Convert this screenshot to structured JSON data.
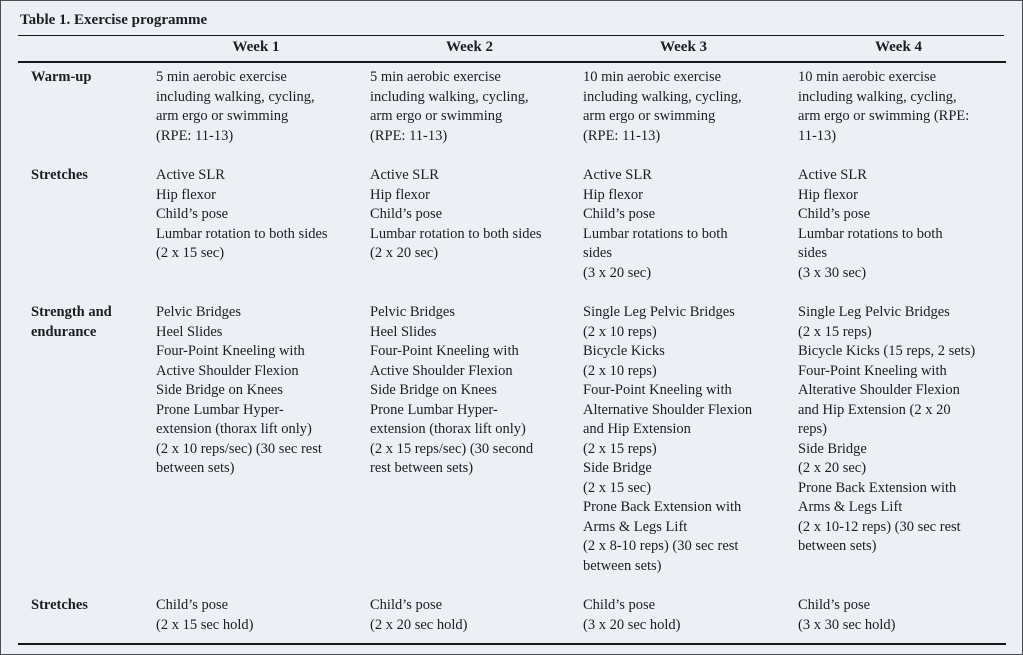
{
  "colors": {
    "bg": "#edeff5",
    "ink": "#1d1d20",
    "rule": "#17171a"
  },
  "caption": "Table 1. Exercise programme",
  "table": {
    "header": [
      "",
      "Week 1",
      "Week 2",
      "Week 3",
      "Week 4"
    ],
    "rows": [
      {
        "label_lines": [
          "Warm-up"
        ],
        "cells": [
          [
            "5 min aerobic exercise",
            "including walking, cycling,",
            "arm ergo or swimming",
            "(RPE: 11-13)"
          ],
          [
            "5 min aerobic exercise",
            "including walking, cycling,",
            "arm ergo or swimming",
            "(RPE: 11-13)"
          ],
          [
            "10 min aerobic exercise",
            "including walking, cycling,",
            "arm ergo or swimming",
            "(RPE: 11-13)"
          ],
          [
            "10 min aerobic exercise",
            "including walking, cycling,",
            "arm ergo or swimming (RPE:",
            "11-13)"
          ]
        ]
      },
      {
        "label_lines": [
          "Stretches"
        ],
        "cells": [
          [
            "Active SLR",
            "Hip flexor",
            "Child’s pose",
            "Lumbar rotation to both sides",
            "(2 x 15 sec)"
          ],
          [
            "Active SLR",
            "Hip flexor",
            "Child’s pose",
            "Lumbar rotation to both sides",
            "(2 x 20 sec)"
          ],
          [
            "Active SLR",
            "Hip flexor",
            "Child’s pose",
            "Lumbar rotations to both",
            "sides",
            "(3 x 20 sec)"
          ],
          [
            "Active SLR",
            "Hip flexor",
            "Child’s pose",
            "Lumbar rotations to both",
            "sides",
            "(3 x 30 sec)"
          ]
        ]
      },
      {
        "label_lines": [
          "Strength and",
          "endurance"
        ],
        "cells": [
          [
            "Pelvic Bridges",
            "Heel Slides",
            "Four-Point Kneeling with",
            "Active Shoulder Flexion",
            "Side Bridge on Knees",
            "Prone Lumbar Hyper-",
            "extension (thorax lift only)",
            "(2 x 10 reps/sec) (30 sec rest",
            "between sets)"
          ],
          [
            "Pelvic Bridges",
            "Heel Slides",
            "Four-Point Kneeling with",
            "Active Shoulder Flexion",
            "Side Bridge on Knees",
            "Prone Lumbar Hyper-",
            "extension (thorax lift only)",
            "(2 x 15 reps/sec) (30 second",
            "rest between sets)"
          ],
          [
            "Single Leg Pelvic Bridges",
            "(2 x 10 reps)",
            "Bicycle Kicks",
            "(2 x 10 reps)",
            "Four-Point Kneeling with",
            "Alternative Shoulder Flexion",
            "and Hip Extension",
            "(2 x 15 reps)",
            "Side Bridge",
            "(2 x 15 sec)",
            "Prone Back Extension with",
            "Arms & Legs Lift",
            "(2 x 8-10 reps) (30 sec rest",
            "between sets)"
          ],
          [
            "Single Leg Pelvic Bridges",
            "(2 x 15 reps)",
            "Bicycle Kicks (15 reps, 2 sets)",
            "Four-Point Kneeling with",
            "Alterative Shoulder Flexion",
            "and Hip Extension (2 x 20",
            "reps)",
            "Side Bridge",
            "(2 x 20 sec)",
            "Prone Back Extension with",
            "Arms & Legs Lift",
            "(2 x 10-12 reps) (30 sec rest",
            "between sets)"
          ]
        ]
      },
      {
        "label_lines": [
          "Stretches"
        ],
        "cells": [
          [
            "Child’s pose",
            "(2 x 15 sec hold)"
          ],
          [
            "Child’s pose",
            "(2 x 20 sec hold)"
          ],
          [
            "Child’s pose",
            "(3 x 20 sec hold)"
          ],
          [
            "Child’s pose",
            "(3 x 30 sec hold)"
          ]
        ]
      }
    ]
  }
}
